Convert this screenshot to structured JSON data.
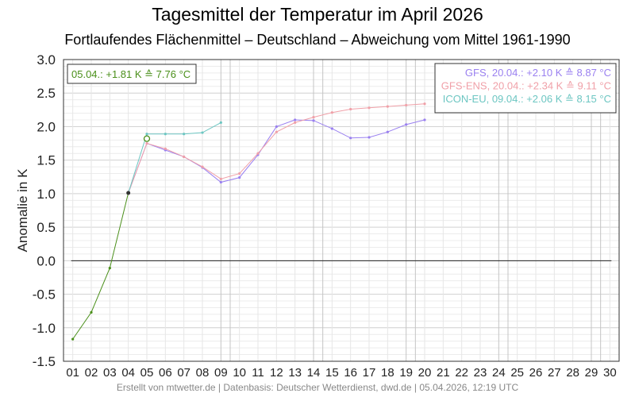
{
  "chart_data": {
    "type": "line",
    "title": "Tagesmittel der Temperatur im April 2026",
    "subtitle": "Fortlaufendes Flächenmittel – Deutschland – Abweichung vom Mittel 1961-1990",
    "ylabel": "Anomalie in K",
    "xlabel": "",
    "ylim": [
      -1.5,
      3.0
    ],
    "y_ticks": [
      "3.0",
      "2.5",
      "2.0",
      "1.5",
      "1.0",
      "0.5",
      "0.0",
      "-0.5",
      "-1.0",
      "-1.5"
    ],
    "x_ticks": [
      "01",
      "02",
      "03",
      "04",
      "05",
      "06",
      "07",
      "08",
      "09",
      "10",
      "11",
      "12",
      "13",
      "14",
      "15",
      "16",
      "17",
      "18",
      "19",
      "20",
      "21",
      "22",
      "23",
      "24",
      "25",
      "26",
      "27",
      "28",
      "29",
      "30"
    ],
    "grid": true,
    "legend_position": "top-right",
    "note": "05.04.: +1.81 K ≙ 7.76 °C",
    "series": [
      {
        "name": "",
        "color": "#4a8f1a",
        "x": [
          1,
          2,
          3,
          4
        ],
        "y": [
          -1.17,
          -0.77,
          -0.11,
          1.01
        ]
      },
      {
        "name": "GFS, 20.04.: +2.10 K ≙ 8.87 °C",
        "color": "#9a80f0",
        "x": [
          4,
          5,
          6,
          7,
          8,
          9,
          10,
          11,
          12,
          13,
          14,
          15,
          16,
          17,
          18,
          19,
          20
        ],
        "y": [
          1.01,
          1.75,
          1.65,
          1.55,
          1.39,
          1.17,
          1.24,
          1.58,
          2.0,
          2.1,
          2.09,
          1.97,
          1.83,
          1.84,
          1.92,
          2.03,
          2.1
        ]
      },
      {
        "name": "GFS-ENS, 20.04.: +2.34 K ≙ 9.11 °C",
        "color": "#f0a0a8",
        "x": [
          4,
          5,
          6,
          7,
          8,
          9,
          10,
          11,
          12,
          13,
          14,
          15,
          16,
          17,
          18,
          19,
          20
        ],
        "y": [
          1.01,
          1.75,
          1.67,
          1.55,
          1.4,
          1.22,
          1.3,
          1.6,
          1.92,
          2.06,
          2.14,
          2.21,
          2.26,
          2.28,
          2.3,
          2.32,
          2.34
        ]
      },
      {
        "name": "ICON-EU, 09.04.: +2.06 K ≙ 8.15 °C",
        "color": "#6cc6c2",
        "x": [
          4,
          5,
          6,
          7,
          8,
          9
        ],
        "y": [
          1.01,
          1.89,
          1.89,
          1.89,
          1.91,
          2.06
        ]
      }
    ],
    "current_marker": {
      "x": 5,
      "y": 1.82,
      "color": "#4a8f1a"
    },
    "last_observed": {
      "x": 4,
      "y": 1.01
    }
  },
  "footer": "Erstellt von mtwetter.de | Datenbasis: Deutscher Wetterdienst, dwd.de | 05.04.2026, 12:19 UTC"
}
